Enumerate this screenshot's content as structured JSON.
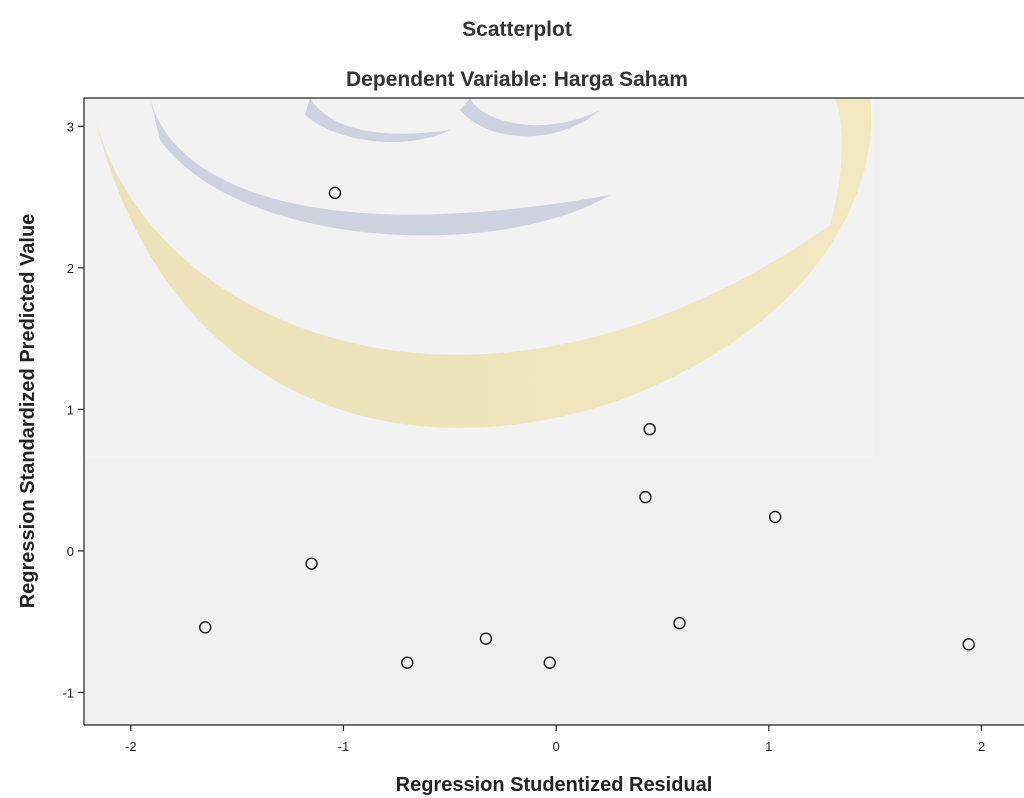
{
  "chart_data": {
    "type": "scatter",
    "title": "Scatterplot",
    "subtitle": "Dependent Variable: Harga Saham",
    "xlabel": "Regression Studentized Residual",
    "ylabel": "Regression Standardized Predicted Value",
    "xlim": [
      -2.22,
      2.2
    ],
    "ylim": [
      -1.23,
      3.2
    ],
    "xticks": [
      -2,
      -1,
      0,
      1,
      2
    ],
    "yticks": [
      -1,
      0,
      1,
      2,
      3
    ],
    "grid": false,
    "points": [
      {
        "x": -1.04,
        "y": 2.53
      },
      {
        "x": 0.44,
        "y": 0.86
      },
      {
        "x": 0.42,
        "y": 0.38
      },
      {
        "x": 1.03,
        "y": 0.24
      },
      {
        "x": -1.15,
        "y": -0.09
      },
      {
        "x": -1.65,
        "y": -0.54
      },
      {
        "x": -0.7,
        "y": -0.79
      },
      {
        "x": -0.33,
        "y": -0.62
      },
      {
        "x": -0.03,
        "y": -0.79
      },
      {
        "x": 0.58,
        "y": -0.51
      },
      {
        "x": 1.94,
        "y": -0.66
      }
    ],
    "colors": {
      "plot_background": "#f0f0f0",
      "marker_stroke": "#1a1a1a",
      "axis": "#222222"
    },
    "watermark": "logo-watermark"
  }
}
